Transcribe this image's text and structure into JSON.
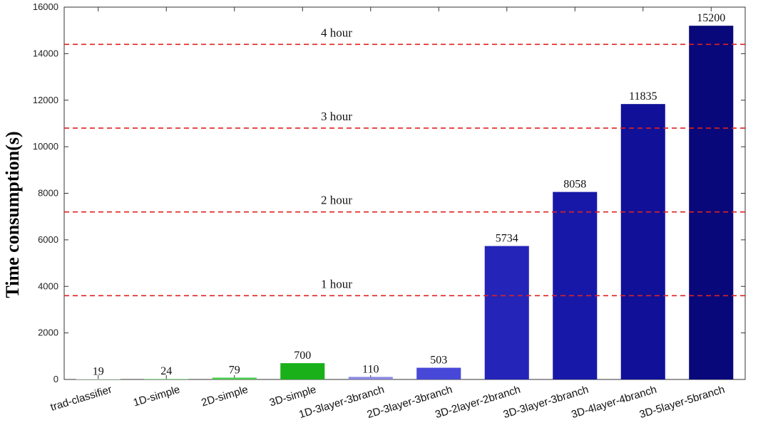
{
  "chart_data": {
    "type": "bar",
    "title": "",
    "xlabel": "",
    "ylabel": "Time consumption(s)",
    "ylim": [
      0,
      16000
    ],
    "yticks": [
      0,
      2000,
      4000,
      6000,
      8000,
      10000,
      12000,
      14000,
      16000
    ],
    "categories": [
      "trad-classifier",
      "1D-simple",
      "2D-simple",
      "3D-simple",
      "1D-3layer-3branch",
      "2D-3layer-3branch",
      "3D-2layer-2branch",
      "3D-3layer-3branch",
      "3D-4layer-4branch",
      "3D-5layer-5branch"
    ],
    "values": [
      19,
      24,
      79,
      700,
      110,
      503,
      5734,
      8058,
      11835,
      15200
    ],
    "data_labels": [
      "19",
      "24",
      "79",
      "700",
      "110",
      "503",
      "5734",
      "8058",
      "11835",
      "15200"
    ],
    "bar_colors": [
      "#c8f0c8",
      "#7fdc7f",
      "#4ccc4c",
      "#1ab01a",
      "#8a8ae0",
      "#4848d8",
      "#2424b8",
      "#1818a8",
      "#101098",
      "#08087a"
    ],
    "reference_lines": [
      {
        "value": 3600,
        "label": "1 hour"
      },
      {
        "value": 7200,
        "label": "2 hour"
      },
      {
        "value": 10800,
        "label": "3 hour"
      },
      {
        "value": 14400,
        "label": "4 hour"
      }
    ],
    "reference_line_color": "#e02020",
    "grid": false,
    "legend": "none"
  }
}
